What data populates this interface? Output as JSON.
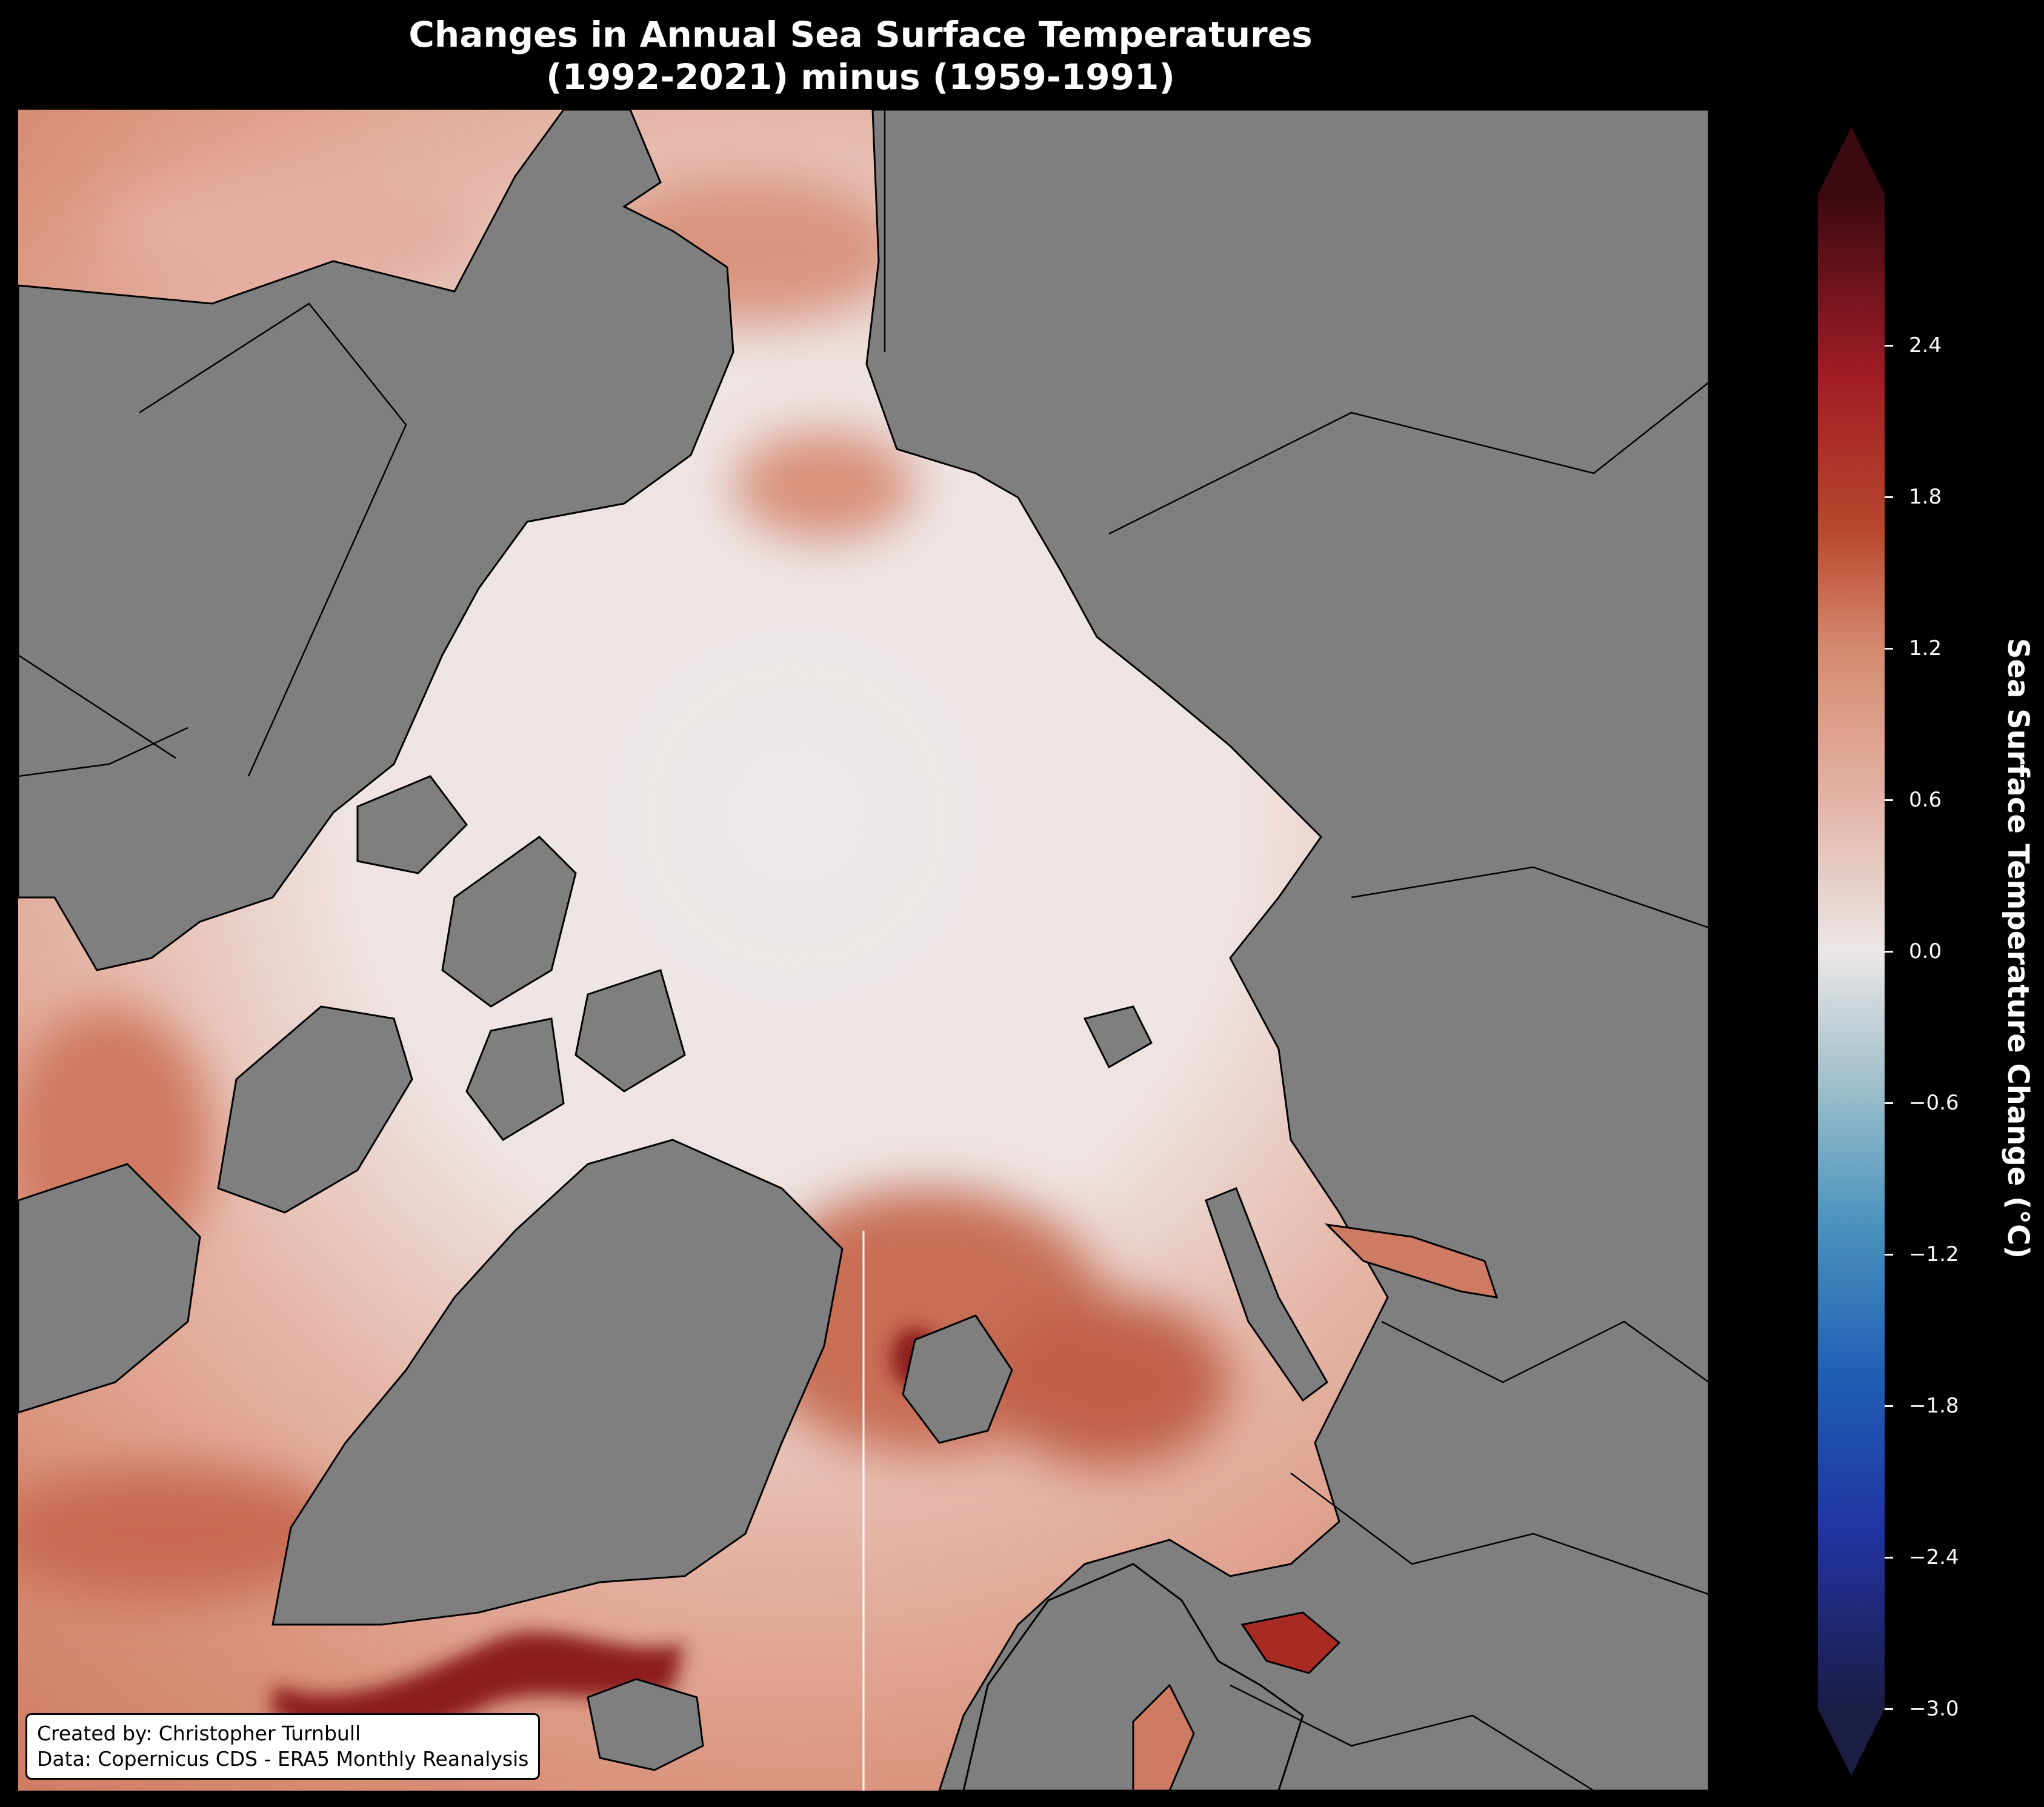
{
  "title": {
    "line1": "Changes in Annual Sea Surface Temperatures",
    "line2": "(1992-2021) minus (1959-1991)"
  },
  "credit": {
    "line1": "Created by: Christopher Turnbull",
    "line2": "Data: Copernicus CDS - ERA5 Monthly Reanalysis"
  },
  "colorbar": {
    "label": "Sea Surface Temperature Change (°C)",
    "range": [
      -3.0,
      3.0
    ],
    "extend": "both",
    "ticks": [
      {
        "value": 2.4,
        "label": "2.4"
      },
      {
        "value": 1.8,
        "label": "1.8"
      },
      {
        "value": 1.2,
        "label": "1.2"
      },
      {
        "value": 0.6,
        "label": "0.6"
      },
      {
        "value": 0.0,
        "label": "0.0"
      },
      {
        "value": -0.6,
        "label": "−0.6"
      },
      {
        "value": -1.2,
        "label": "−1.2"
      },
      {
        "value": -1.8,
        "label": "−1.8"
      },
      {
        "value": -2.4,
        "label": "−2.4"
      },
      {
        "value": -3.0,
        "label": "−3.0"
      }
    ],
    "colors": {
      "min": "#1b1d45",
      "mid_low": "#1f5fb4",
      "low": "#8cb6c8",
      "zero": "#ebe6e6",
      "high": "#d58a70",
      "mid_high": "#b72b24",
      "max": "#3b0a10"
    }
  },
  "map": {
    "projection": "north-polar-stereographic",
    "land_color": "#7f7f7f",
    "ocean_near_zero": "#ece8e8",
    "warming_color": "#d88f77",
    "strong_warming_color": "#8c1a1e",
    "coast_color": "#000000"
  }
}
